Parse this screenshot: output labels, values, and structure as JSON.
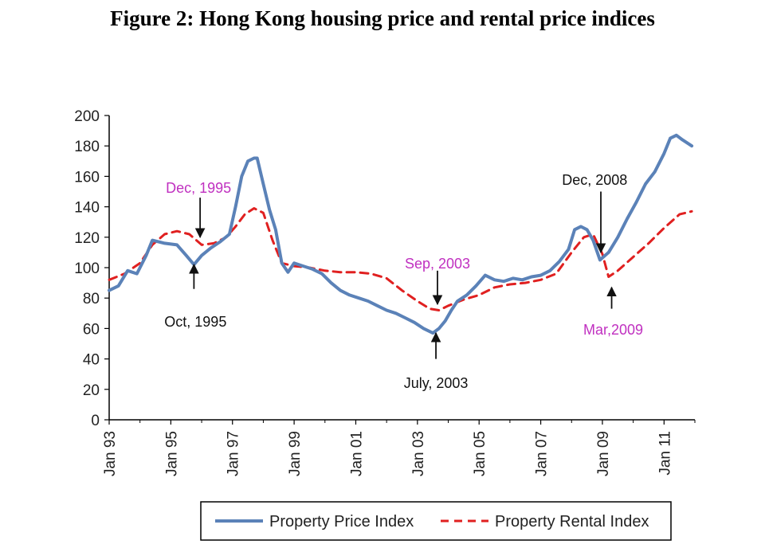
{
  "figure_title": "Figure 2: Hong Kong housing price and rental price indices",
  "colors": {
    "price": "#5b82b8",
    "rental": "#e02020",
    "ann_black": "#111111",
    "ann_magenta": "#c030c0"
  },
  "chart_data": {
    "type": "line",
    "title": "Figure 2: Hong Kong housing price and rental price indices",
    "ylim": [
      0,
      200
    ],
    "xlim": [
      1993.0,
      2012.0
    ],
    "y_ticks": [
      "0",
      "20",
      "40",
      "60",
      "80",
      "100",
      "120",
      "140",
      "160",
      "180",
      "200"
    ],
    "x_ticks": [
      "Jan 93",
      "Jan 95",
      "Jan 97",
      "Jan 99",
      "Jan 01",
      "Jan 03",
      "Jan 05",
      "Jan 07",
      "Jan 09",
      "Jan 11"
    ],
    "legend": {
      "position": "bottom"
    },
    "series": [
      {
        "name": "Property Price Index",
        "style": "solid",
        "x": [
          1993.0,
          1993.3,
          1993.6,
          1993.9,
          1994.2,
          1994.4,
          1994.8,
          1995.2,
          1995.5,
          1995.75,
          1996.0,
          1996.3,
          1996.6,
          1996.9,
          1997.1,
          1997.3,
          1997.5,
          1997.7,
          1997.8,
          1998.0,
          1998.2,
          1998.4,
          1998.6,
          1998.8,
          1999.0,
          1999.3,
          1999.6,
          1999.9,
          2000.2,
          2000.5,
          2000.8,
          2001.1,
          2001.4,
          2001.7,
          2002.0,
          2002.3,
          2002.6,
          2002.9,
          2003.2,
          2003.5,
          2003.7,
          2003.9,
          2004.1,
          2004.3,
          2004.6,
          2004.9,
          2005.2,
          2005.5,
          2005.8,
          2006.1,
          2006.4,
          2006.7,
          2007.0,
          2007.3,
          2007.6,
          2007.9,
          2008.1,
          2008.3,
          2008.5,
          2008.7,
          2008.92,
          2009.2,
          2009.5,
          2009.8,
          2010.1,
          2010.4,
          2010.7,
          2011.0,
          2011.2,
          2011.4,
          2011.6,
          2011.9
        ],
        "y": [
          85,
          88,
          98,
          96,
          108,
          118,
          116,
          115,
          108,
          102,
          108,
          113,
          117,
          122,
          140,
          160,
          170,
          172,
          172,
          155,
          138,
          125,
          103,
          97,
          103,
          101,
          99,
          96,
          90,
          85,
          82,
          80,
          78,
          75,
          72,
          70,
          67,
          64,
          60,
          57,
          60,
          65,
          72,
          78,
          82,
          88,
          95,
          92,
          91,
          93,
          92,
          94,
          95,
          98,
          104,
          112,
          125,
          127,
          125,
          118,
          105,
          110,
          120,
          132,
          143,
          155,
          163,
          175,
          185,
          187,
          184,
          180
        ]
      },
      {
        "name": "Property Rental Index",
        "style": "dashed",
        "x": [
          1993.0,
          1993.5,
          1994.0,
          1994.4,
          1994.8,
          1995.2,
          1995.6,
          1996.0,
          1996.4,
          1996.8,
          1997.1,
          1997.4,
          1997.7,
          1998.0,
          1998.3,
          1998.6,
          1999.0,
          1999.5,
          2000.0,
          2000.5,
          2001.0,
          2001.5,
          2002.0,
          2002.5,
          2003.0,
          2003.4,
          2003.7,
          2004.0,
          2004.5,
          2005.0,
          2005.5,
          2006.0,
          2006.5,
          2007.0,
          2007.5,
          2008.0,
          2008.4,
          2008.7,
          2009.0,
          2009.2,
          2009.5,
          2010.0,
          2010.5,
          2011.0,
          2011.5,
          2011.9
        ],
        "y": [
          92,
          96,
          103,
          115,
          122,
          124,
          122,
          115,
          116,
          120,
          127,
          135,
          139,
          136,
          118,
          103,
          101,
          100,
          98,
          97,
          97,
          96,
          93,
          85,
          78,
          73,
          72,
          75,
          79,
          82,
          87,
          89,
          90,
          92,
          96,
          110,
          120,
          122,
          109,
          94,
          98,
          107,
          116,
          126,
          135,
          137
        ]
      }
    ],
    "annotations": [
      {
        "label": "Dec, 1995",
        "color": "magenta"
      },
      {
        "label": "Oct, 1995",
        "color": "black"
      },
      {
        "label": "Sep, 2003",
        "color": "magenta"
      },
      {
        "label": "July, 2003",
        "color": "black"
      },
      {
        "label": "Dec, 2008",
        "color": "black"
      },
      {
        "label": "Mar,2009",
        "color": "magenta"
      }
    ]
  }
}
